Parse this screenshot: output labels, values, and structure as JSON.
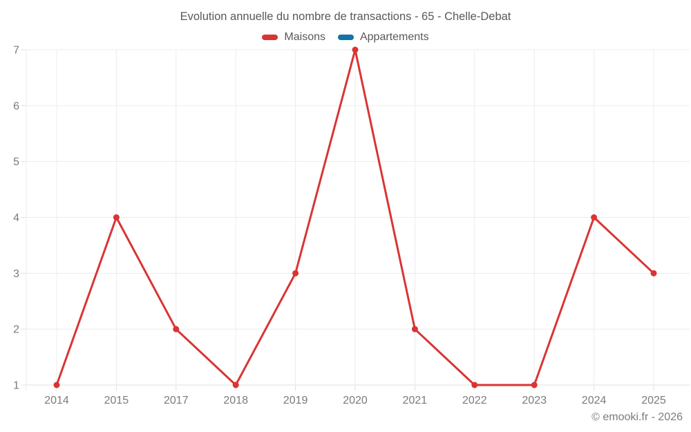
{
  "chart_data": {
    "type": "line",
    "title": "Evolution annuelle du nombre de transactions - 65 - Chelle-Debat",
    "categories": [
      "2014",
      "2015",
      "2017",
      "2018",
      "2019",
      "2020",
      "2021",
      "2022",
      "2023",
      "2024",
      "2025"
    ],
    "series": [
      {
        "name": "Maisons",
        "color": "#d93434",
        "values": [
          1,
          4,
          2,
          1,
          3,
          7,
          2,
          1,
          1,
          4,
          3
        ]
      },
      {
        "name": "Appartements",
        "color": "#1273a8",
        "values": []
      }
    ],
    "xlabel": "",
    "ylabel": "",
    "ylim": [
      1,
      7
    ],
    "yticks": [
      1,
      2,
      3,
      4,
      5,
      6,
      7
    ],
    "grid": true,
    "legend_position": "top"
  },
  "watermark": "© emooki.fr - 2026",
  "colors": {
    "maisons_red": "#d93434",
    "appartements_blue": "#1273a8",
    "gridline": "#ececec",
    "axis_line": "#e0e0e0",
    "tick_label_text": "#7b7b7d",
    "title_text": "#58585a"
  }
}
